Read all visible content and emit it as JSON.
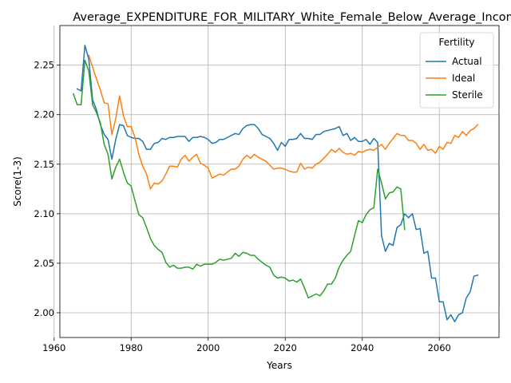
{
  "chart_data": {
    "type": "line",
    "title": "Average_EXPENDITURE_FOR_MILITARY_White_Female_Below_Average_Income",
    "xlabel": "Years",
    "ylabel": "Score(1-3)",
    "xlim": [
      1961.5,
      2075.5
    ],
    "ylim": [
      1.975,
      2.29
    ],
    "x_ticks": [
      1960,
      1980,
      2000,
      2020,
      2040,
      2060
    ],
    "y_ticks": [
      2.0,
      2.05,
      2.1,
      2.15,
      2.2,
      2.25
    ],
    "x_tick_labels": [
      "1960",
      "1980",
      "2000",
      "2020",
      "2040",
      "2060"
    ],
    "y_tick_labels": [
      "2.00",
      "2.05",
      "2.10",
      "2.15",
      "2.20",
      "2.25"
    ],
    "grid": true,
    "legend": {
      "title": "Fertility",
      "position": "top-right"
    },
    "series": [
      {
        "name": "Actual",
        "color": "#1f77b4",
        "x": [
          1966,
          1967,
          1968,
          1969,
          1970,
          1971,
          1972,
          1973,
          1974,
          1975,
          1976,
          1977,
          1978,
          1979,
          1980,
          1981,
          1982,
          1983,
          1984,
          1985,
          1986,
          1987,
          1988,
          1989,
          1990,
          1991,
          1992,
          1993,
          1994,
          1995,
          1996,
          1997,
          1998,
          1999,
          2000,
          2001,
          2002,
          2003,
          2004,
          2005,
          2006,
          2007,
          2008,
          2009,
          2010,
          2011,
          2012,
          2013,
          2014,
          2015,
          2016,
          2017,
          2018,
          2019,
          2020,
          2021,
          2022,
          2023,
          2024,
          2025,
          2026,
          2027,
          2028,
          2029,
          2030,
          2031,
          2032,
          2033,
          2034,
          2035,
          2036,
          2037,
          2038,
          2039,
          2040,
          2041,
          2042,
          2043,
          2044,
          2045,
          2046,
          2047,
          2048,
          2049,
          2050,
          2051,
          2052,
          2053,
          2054,
          2055,
          2056,
          2057,
          2058,
          2059,
          2060,
          2061,
          2062,
          2063,
          2064,
          2065,
          2066,
          2067,
          2068,
          2069,
          2070
        ],
        "values": [
          2.226,
          2.224,
          2.27,
          2.256,
          2.215,
          2.205,
          2.19,
          2.18,
          2.175,
          2.155,
          2.175,
          2.19,
          2.189,
          2.179,
          2.177,
          2.176,
          2.176,
          2.173,
          2.165,
          2.165,
          2.171,
          2.172,
          2.176,
          2.175,
          2.177,
          2.177,
          2.178,
          2.178,
          2.178,
          2.173,
          2.177,
          2.177,
          2.178,
          2.177,
          2.175,
          2.171,
          2.172,
          2.175,
          2.175,
          2.177,
          2.179,
          2.181,
          2.18,
          2.186,
          2.189,
          2.19,
          2.19,
          2.186,
          2.18,
          2.178,
          2.176,
          2.171,
          2.164,
          2.172,
          2.168,
          2.175,
          2.175,
          2.176,
          2.181,
          2.176,
          2.176,
          2.175,
          2.18,
          2.18,
          2.183,
          2.184,
          2.185,
          2.186,
          2.188,
          2.179,
          2.181,
          2.174,
          2.177,
          2.173,
          2.173,
          2.175,
          2.17,
          2.176,
          2.172,
          2.078,
          2.062,
          2.07,
          2.068,
          2.086,
          2.089,
          2.1,
          2.096,
          2.1,
          2.084,
          2.085,
          2.06,
          2.062,
          2.035,
          2.035,
          2.011,
          2.011,
          1.993,
          1.998,
          1.991,
          1.998,
          2.0,
          2.015,
          2.021,
          2.037,
          2.038
        ]
      },
      {
        "name": "Ideal",
        "color": "#ff7f0e",
        "x": [
          1969,
          1970,
          1971,
          1972,
          1973,
          1974,
          1975,
          1976,
          1977,
          1978,
          1979,
          1980,
          1981,
          1982,
          1983,
          1984,
          1985,
          1986,
          1987,
          1988,
          1989,
          1990,
          1991,
          1992,
          1993,
          1994,
          1995,
          1996,
          1997,
          1998,
          1999,
          2000,
          2001,
          2002,
          2003,
          2004,
          2005,
          2006,
          2007,
          2008,
          2009,
          2010,
          2011,
          2012,
          2013,
          2014,
          2015,
          2016,
          2017,
          2018,
          2019,
          2020,
          2021,
          2022,
          2023,
          2024,
          2025,
          2026,
          2027,
          2028,
          2029,
          2030,
          2031,
          2032,
          2033,
          2034,
          2035,
          2036,
          2037,
          2038,
          2039,
          2040,
          2041,
          2042,
          2043,
          2044,
          2045,
          2046,
          2047,
          2048,
          2049,
          2050,
          2051,
          2052,
          2053,
          2054,
          2055,
          2056,
          2057,
          2058,
          2059,
          2060,
          2061,
          2062,
          2063,
          2064,
          2065,
          2066,
          2067,
          2068,
          2069,
          2070
        ],
        "values": [
          2.26,
          2.248,
          2.236,
          2.225,
          2.212,
          2.211,
          2.18,
          2.196,
          2.219,
          2.199,
          2.188,
          2.188,
          2.177,
          2.16,
          2.148,
          2.14,
          2.125,
          2.131,
          2.13,
          2.133,
          2.14,
          2.148,
          2.148,
          2.147,
          2.155,
          2.159,
          2.153,
          2.157,
          2.16,
          2.151,
          2.149,
          2.146,
          2.136,
          2.138,
          2.14,
          2.139,
          2.142,
          2.145,
          2.145,
          2.148,
          2.155,
          2.159,
          2.156,
          2.16,
          2.157,
          2.155,
          2.153,
          2.149,
          2.145,
          2.146,
          2.146,
          2.145,
          2.143,
          2.142,
          2.142,
          2.151,
          2.145,
          2.147,
          2.146,
          2.15,
          2.152,
          2.156,
          2.16,
          2.165,
          2.162,
          2.166,
          2.162,
          2.16,
          2.161,
          2.159,
          2.163,
          2.162,
          2.164,
          2.165,
          2.164,
          2.167,
          2.17,
          2.165,
          2.171,
          2.176,
          2.181,
          2.179,
          2.179,
          2.174,
          2.174,
          2.171,
          2.165,
          2.17,
          2.164,
          2.165,
          2.161,
          2.168,
          2.165,
          2.172,
          2.171,
          2.179,
          2.177,
          2.183,
          2.179,
          2.184,
          2.186,
          2.19
        ]
      },
      {
        "name": "Sterile",
        "color": "#2ca02c",
        "x": [
          1965,
          1966,
          1967,
          1968,
          1969,
          1970,
          1971,
          1972,
          1973,
          1974,
          1975,
          1976,
          1977,
          1978,
          1979,
          1980,
          1981,
          1982,
          1983,
          1984,
          1985,
          1986,
          1987,
          1988,
          1989,
          1990,
          1991,
          1992,
          1993,
          1994,
          1995,
          1996,
          1997,
          1998,
          1999,
          2000,
          2001,
          2002,
          2003,
          2004,
          2005,
          2006,
          2007,
          2008,
          2009,
          2010,
          2011,
          2012,
          2013,
          2014,
          2015,
          2016,
          2017,
          2018,
          2019,
          2020,
          2021,
          2022,
          2023,
          2024,
          2025,
          2026,
          2027,
          2028,
          2029,
          2030,
          2031,
          2032,
          2033,
          2034,
          2035,
          2036,
          2037,
          2038,
          2039,
          2040,
          2041,
          2042,
          2043,
          2044,
          2045,
          2046,
          2047,
          2048,
          2049,
          2050,
          2051
        ],
        "values": [
          2.221,
          2.21,
          2.21,
          2.255,
          2.244,
          2.21,
          2.202,
          2.192,
          2.17,
          2.16,
          2.135,
          2.147,
          2.155,
          2.142,
          2.131,
          2.128,
          2.113,
          2.099,
          2.096,
          2.086,
          2.075,
          2.068,
          2.064,
          2.061,
          2.051,
          2.046,
          2.048,
          2.045,
          2.045,
          2.046,
          2.046,
          2.044,
          2.049,
          2.047,
          2.049,
          2.049,
          2.049,
          2.051,
          2.054,
          2.053,
          2.054,
          2.055,
          2.06,
          2.057,
          2.061,
          2.06,
          2.058,
          2.058,
          2.054,
          2.051,
          2.048,
          2.046,
          2.038,
          2.035,
          2.036,
          2.035,
          2.032,
          2.033,
          2.031,
          2.034,
          2.025,
          2.015,
          2.017,
          2.019,
          2.017,
          2.022,
          2.029,
          2.029,
          2.035,
          2.046,
          2.053,
          2.058,
          2.062,
          2.078,
          2.093,
          2.091,
          2.099,
          2.104,
          2.106,
          2.145,
          2.131,
          2.115,
          2.121,
          2.122,
          2.127,
          2.125,
          2.084
        ]
      }
    ]
  }
}
